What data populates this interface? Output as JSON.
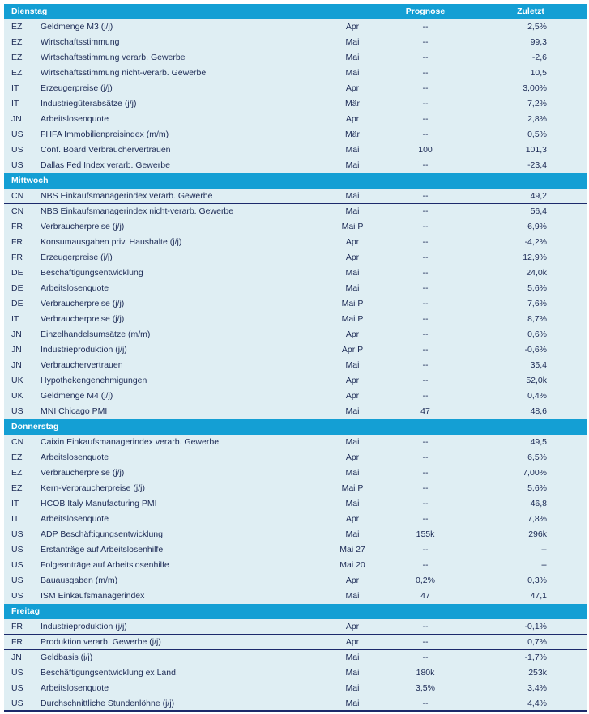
{
  "columns": {
    "prognose": "Prognose",
    "zuletzt": "Zuletzt"
  },
  "colors": {
    "header": "#149fd4",
    "row": "#dfeef3",
    "text": "#1c2a55",
    "divider": "#1c2a6b"
  },
  "sections": [
    {
      "day": "Dienstag",
      "rows": [
        [
          "EZ",
          "Geldmenge M3 (j/j)",
          "Apr",
          "--",
          "2,5%"
        ],
        [
          "EZ",
          "Wirtschaftsstimmung",
          "Mai",
          "--",
          "99,3"
        ],
        [
          "EZ",
          "Wirtschaftsstimmung verarb. Gewerbe",
          "Mai",
          "--",
          "-2,6"
        ],
        [
          "EZ",
          "Wirtschaftsstimmung nicht-verarb. Gewerbe",
          "Mai",
          "--",
          "10,5"
        ],
        [
          "IT",
          "Erzeugerpreise (j/j)",
          "Apr",
          "--",
          "3,00%"
        ],
        [
          "IT",
          "Industriegüterabsätze (j/j)",
          "Mär",
          "--",
          "7,2%"
        ],
        [
          "JN",
          "Arbeitslosenquote",
          "Apr",
          "--",
          "2,8%"
        ],
        [
          "US",
          "FHFA Immobilienpreisindex (m/m)",
          "Mär",
          "--",
          "0,5%"
        ],
        [
          "US",
          "Conf. Board Verbrauchervertrauen",
          "Mai",
          "100",
          "101,3"
        ],
        [
          "US",
          "Dallas Fed Index verarb. Gewerbe",
          "Mai",
          "--",
          "-23,4"
        ]
      ]
    },
    {
      "day": "Mittwoch",
      "rows": [
        [
          "CN",
          "NBS Einkaufsmanagerindex verarb. Gewerbe",
          "Mai",
          "--",
          "49,2"
        ],
        [
          "CN",
          "NBS Einkaufsmanagerindex nicht-verarb. Gewerbe",
          "Mai",
          "--",
          "56,4"
        ],
        [
          "FR",
          "Verbraucherpreise (j/j)",
          "Mai P",
          "--",
          "6,9%"
        ],
        [
          "FR",
          "Konsumausgaben priv. Haushalte (j/j)",
          "Apr",
          "--",
          "-4,2%"
        ],
        [
          "FR",
          "Erzeugerpreise (j/j)",
          "Apr",
          "--",
          "12,9%"
        ],
        [
          "DE",
          "Beschäftigungsentwicklung",
          "Mai",
          "--",
          "24,0k"
        ],
        [
          "DE",
          "Arbeitslosenquote",
          "Mai",
          "--",
          "5,6%"
        ],
        [
          "DE",
          "Verbraucherpreise (j/j)",
          "Mai P",
          "--",
          "7,6%"
        ],
        [
          "IT",
          "Verbraucherpreise (j/j)",
          "Mai P",
          "--",
          "8,7%"
        ],
        [
          "JN",
          "Einzelhandelsumsätze (m/m)",
          "Apr",
          "--",
          "0,6%"
        ],
        [
          "JN",
          "Industrieproduktion (j/j)",
          "Apr P",
          "--",
          "-0,6%"
        ],
        [
          "JN",
          "Verbrauchervertrauen",
          "Mai",
          "--",
          "35,4"
        ],
        [
          "UK",
          "Hypothekengenehmigungen",
          "Apr",
          "--",
          "52,0k"
        ],
        [
          "UK",
          "Geldmenge M4 (j/j)",
          "Apr",
          "--",
          "0,4%"
        ],
        [
          "US",
          "MNI Chicago PMI",
          "Mai",
          "47",
          "48,6"
        ]
      ]
    },
    {
      "day": "Donnerstag",
      "rows": [
        [
          "CN",
          "Caixin Einkaufsmanagerindex verarb. Gewerbe",
          "Mai",
          "--",
          "49,5"
        ],
        [
          "EZ",
          "Arbeitslosenquote",
          "Apr",
          "--",
          "6,5%"
        ],
        [
          "EZ",
          "Verbraucherpreise (j/j)",
          "Mai",
          "--",
          "7,00%"
        ],
        [
          "EZ",
          "Kern-Verbraucherpreise (j/j)",
          "Mai P",
          "--",
          "5,6%"
        ],
        [
          "IT",
          "HCOB Italy Manufacturing PMI",
          "Mai",
          "--",
          "46,8"
        ],
        [
          "IT",
          "Arbeitslosenquote",
          "Apr",
          "--",
          "7,8%"
        ],
        [
          "US",
          "ADP Beschäftigungsentwicklung",
          "Mai",
          "155k",
          "296k"
        ],
        [
          "US",
          "Erstanträge auf Arbeitslosenhilfe",
          "Mai 27",
          "--",
          "--"
        ],
        [
          "US",
          "Folgeanträge auf Arbeitslosenhilfe",
          "Mai 20",
          "--",
          "--"
        ],
        [
          "US",
          "Bauausgaben (m/m)",
          "Apr",
          "0,2%",
          "0,3%"
        ],
        [
          "US",
          "ISM Einkaufsmanagerindex",
          "Mai",
          "47",
          "47,1"
        ]
      ]
    },
    {
      "day": "Freitag",
      "rows": [
        [
          "FR",
          "Industrieproduktion (j/j)",
          "Apr",
          "--",
          "-0,1%"
        ],
        [
          "FR",
          "Produktion verarb. Gewerbe (j/j)",
          "Apr",
          "--",
          "0,7%"
        ],
        [
          "JN",
          "Geldbasis (j/j)",
          "Mai",
          "--",
          "-1,7%"
        ],
        [
          "US",
          "Beschäftigungsentwicklung ex Land.",
          "Mai",
          "180k",
          "253k"
        ],
        [
          "US",
          "Arbeitslosenquote",
          "Mai",
          "3,5%",
          "3,4%"
        ],
        [
          "US",
          "Durchschnittliche Stundenlöhne (j/j)",
          "Mai",
          "--",
          "4,4%"
        ]
      ]
    }
  ]
}
